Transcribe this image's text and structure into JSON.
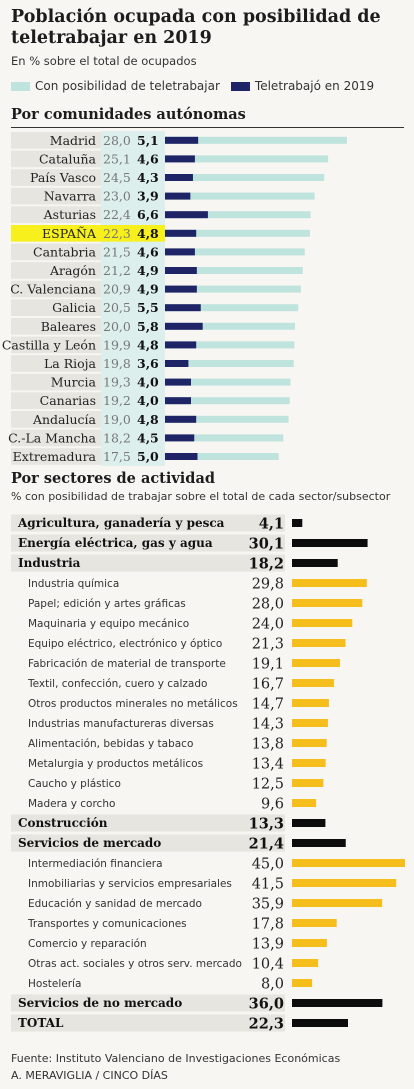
{
  "header": {
    "title": "Población ocupada con posibilidad de teletrabajar en 2019",
    "subtitle": "En % sobre el total de ocupados"
  },
  "legend": {
    "teletrabajar": "Con posibilidad de teletrabajar",
    "teletrabajo": "Teletrabajó en 2019"
  },
  "colors": {
    "posibilidad": "#bfe3dd",
    "teletrabajo": "#1f2466",
    "sector_main": "#0d0d0d",
    "sector_sub": "#f6be1d",
    "label_band": "#e6e5e0",
    "value_band": "#dcefec",
    "highlight": "#f7f01c"
  },
  "section1": {
    "title": "Por comunidades autónomas"
  },
  "section2": {
    "title": "Por sectores de actividad",
    "subtitle": "% con posibilidad de trabajar sobre el total de cada sector/subsector"
  },
  "chart_data": [
    {
      "type": "bar",
      "orientation": "horizontal",
      "title": "Por comunidades autónomas",
      "categories": [
        "Madrid",
        "Cataluña",
        "País Vasco",
        "Navarra",
        "Asturias",
        "ESPAÑA",
        "Cantabria",
        "Aragón",
        "C. Valenciana",
        "Galicia",
        "Baleares",
        "Castilla y León",
        "La Rioja",
        "Murcia",
        "Canarias",
        "Andalucía",
        "C.-La Mancha",
        "Extremadura"
      ],
      "highlight": "ESPAÑA",
      "series": [
        {
          "name": "Con posibilidad de teletrabajar",
          "values": [
            28.0,
            25.1,
            24.5,
            23.0,
            22.4,
            22.3,
            21.5,
            21.2,
            20.9,
            20.5,
            20.0,
            19.9,
            19.8,
            19.3,
            19.2,
            19.0,
            18.2,
            17.5
          ]
        },
        {
          "name": "Teletrabajó en 2019",
          "values": [
            5.1,
            4.6,
            4.3,
            3.9,
            6.6,
            4.8,
            4.6,
            4.9,
            4.9,
            5.5,
            5.8,
            4.8,
            3.6,
            4.0,
            4.0,
            4.8,
            4.5,
            5.0
          ]
        }
      ],
      "value_labels_1": [
        "28,0",
        "25,1",
        "24,5",
        "23,0",
        "22,4",
        "22,3",
        "21,5",
        "21,2",
        "20,9",
        "20,5",
        "20,0",
        "19,9",
        "19,8",
        "19,3",
        "19,2",
        "19,0",
        "18,2",
        "17,5"
      ],
      "value_labels_2": [
        "5,1",
        "4,6",
        "4,3",
        "3,9",
        "6,6",
        "4,8",
        "4,6",
        "4,9",
        "4,9",
        "5,5",
        "5,8",
        "4,8",
        "3,6",
        "4,0",
        "4,0",
        "4,8",
        "4,5",
        "5,0"
      ]
    },
    {
      "type": "bar",
      "orientation": "horizontal",
      "title": "Por sectores de actividad",
      "subtitle": "% con posibilidad de trabajar sobre el total de cada sector/subsector",
      "rows": [
        {
          "label": "Agricultura, ganadería y pesca",
          "value": 4.1,
          "text": "4,1",
          "level": "main"
        },
        {
          "label": "Energía eléctrica, gas y agua",
          "value": 30.1,
          "text": "30,1",
          "level": "main"
        },
        {
          "label": "Industria",
          "value": 18.2,
          "text": "18,2",
          "level": "main"
        },
        {
          "label": "Industria química",
          "value": 29.8,
          "text": "29,8",
          "level": "sub"
        },
        {
          "label": "Papel; edición y artes gráficas",
          "value": 28.0,
          "text": "28,0",
          "level": "sub"
        },
        {
          "label": "Maquinaria y equipo mecánico",
          "value": 24.0,
          "text": "24,0",
          "level": "sub"
        },
        {
          "label": "Equipo eléctrico, electrónico y óptico",
          "value": 21.3,
          "text": "21,3",
          "level": "sub"
        },
        {
          "label": "Fabricación de material de transporte",
          "value": 19.1,
          "text": "19,1",
          "level": "sub"
        },
        {
          "label": "Textil, confección, cuero y calzado",
          "value": 16.7,
          "text": "16,7",
          "level": "sub"
        },
        {
          "label": "Otros productos minerales no metálicos",
          "value": 14.7,
          "text": "14,7",
          "level": "sub"
        },
        {
          "label": "Industrias manufactureras diversas",
          "value": 14.3,
          "text": "14,3",
          "level": "sub"
        },
        {
          "label": "Alimentación, bebidas y tabaco",
          "value": 13.8,
          "text": "13,8",
          "level": "sub"
        },
        {
          "label": "Metalurgia y productos metálicos",
          "value": 13.4,
          "text": "13,4",
          "level": "sub"
        },
        {
          "label": "Caucho y plástico",
          "value": 12.5,
          "text": "12,5",
          "level": "sub"
        },
        {
          "label": "Madera y corcho",
          "value": 9.6,
          "text": "9,6",
          "level": "sub"
        },
        {
          "label": "Construcción",
          "value": 13.3,
          "text": "13,3",
          "level": "main"
        },
        {
          "label": "Servicios de mercado",
          "value": 21.4,
          "text": "21,4",
          "level": "main"
        },
        {
          "label": "Intermediación financiera",
          "value": 45.0,
          "text": "45,0",
          "level": "sub"
        },
        {
          "label": "Inmobiliarias y servicios empresariales",
          "value": 41.5,
          "text": "41,5",
          "level": "sub"
        },
        {
          "label": "Educación y sanidad de mercado",
          "value": 35.9,
          "text": "35,9",
          "level": "sub"
        },
        {
          "label": "Transportes y comunicaciones",
          "value": 17.8,
          "text": "17,8",
          "level": "sub"
        },
        {
          "label": "Comercio y reparación",
          "value": 13.9,
          "text": "13,9",
          "level": "sub"
        },
        {
          "label": "Otras act. sociales y otros serv. mercado",
          "value": 10.4,
          "text": "10,4",
          "level": "sub"
        },
        {
          "label": "Hostelería",
          "value": 8.0,
          "text": "8,0",
          "level": "sub"
        },
        {
          "label": "Servicios de no mercado",
          "value": 36.0,
          "text": "36,0",
          "level": "main"
        },
        {
          "label": "TOTAL",
          "value": 22.3,
          "text": "22,3",
          "level": "main"
        }
      ]
    }
  ],
  "footer": {
    "source": "Fuente: Instituto Valenciano de Investigaciones Económicas",
    "credit": "A. MERAVIGLIA / CINCO DÍAS"
  }
}
